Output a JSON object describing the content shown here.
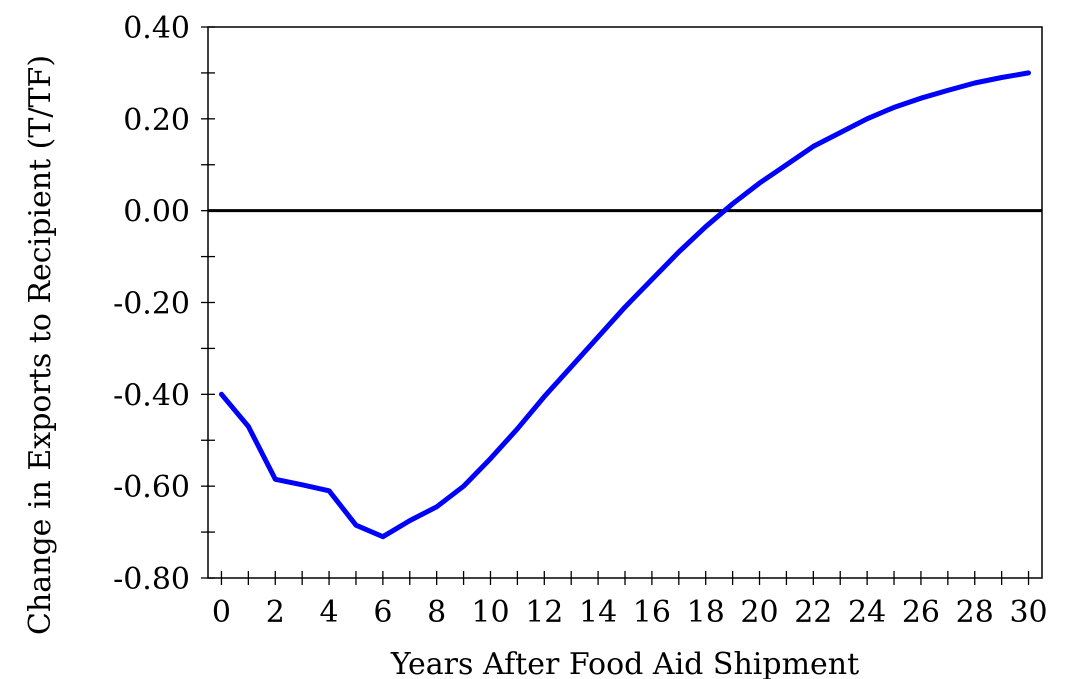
{
  "chart_data": {
    "type": "line",
    "title": "",
    "xlabel": "Years After Food Aid Shipment",
    "ylabel": "Change in Exports to Recipient (T/TF)",
    "xlim": [
      -0.5,
      30.5
    ],
    "ylim": [
      -0.8,
      0.4
    ],
    "xticks": [
      0,
      2,
      4,
      6,
      8,
      10,
      12,
      14,
      16,
      18,
      20,
      22,
      24,
      26,
      28,
      30
    ],
    "yticks": [
      -0.8,
      -0.6,
      -0.4,
      -0.2,
      0.0,
      0.2,
      0.4
    ],
    "ytick_labels": [
      "-0.80",
      "-0.60",
      "-0.40",
      "-0.20",
      "0.00",
      "0.20",
      "0.40"
    ],
    "grid": false,
    "reference_line_y": 0.0,
    "series": [
      {
        "color": "#0000ff",
        "x": [
          0,
          1,
          2,
          3,
          4,
          5,
          6,
          7,
          8,
          9,
          10,
          11,
          12,
          13,
          14,
          15,
          16,
          17,
          18,
          19,
          20,
          21,
          22,
          23,
          24,
          25,
          26,
          27,
          28,
          29,
          30
        ],
        "values": [
          -0.4,
          -0.47,
          -0.585,
          -0.597,
          -0.61,
          -0.685,
          -0.71,
          -0.675,
          -0.645,
          -0.6,
          -0.54,
          -0.475,
          -0.405,
          -0.34,
          -0.275,
          -0.21,
          -0.15,
          -0.09,
          -0.035,
          0.015,
          0.06,
          0.1,
          0.14,
          0.17,
          0.2,
          0.225,
          0.245,
          0.262,
          0.278,
          0.29,
          0.3
        ]
      }
    ]
  }
}
